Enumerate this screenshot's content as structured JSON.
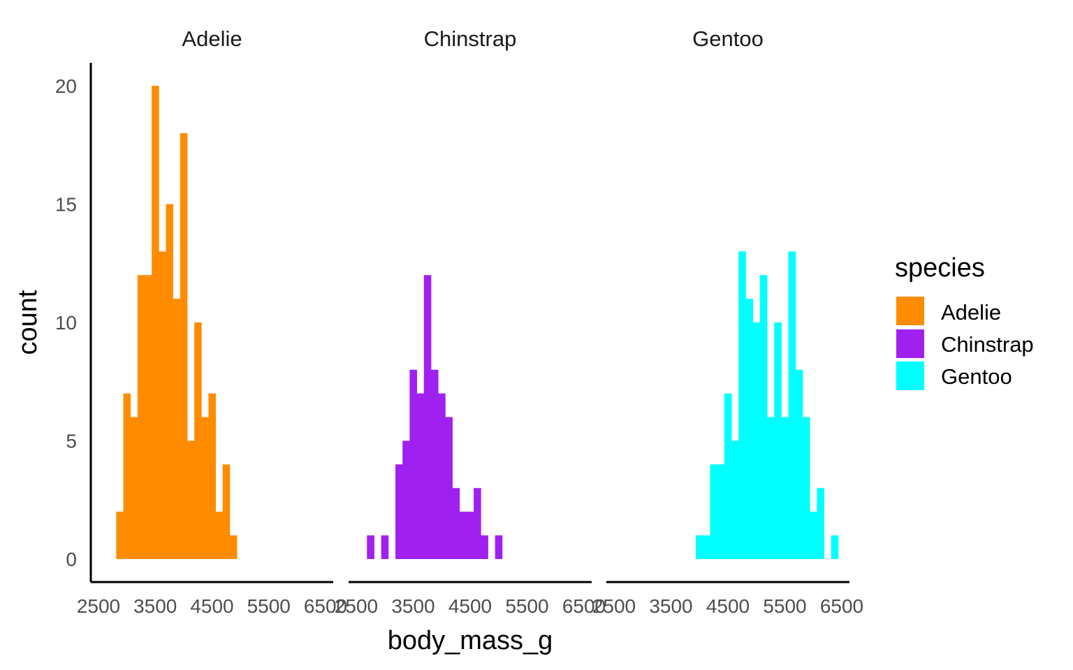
{
  "chart_data": {
    "type": "bar",
    "subtype": "faceted-histogram",
    "title": "",
    "xlabel": "body_mass_g",
    "ylabel": "count",
    "xlim": [
      2500,
      6500
    ],
    "ylim": [
      0,
      20
    ],
    "x_ticks": [
      2500,
      3500,
      4500,
      5500,
      6500
    ],
    "x_tick_labels": [
      "2500",
      "3500",
      "4500",
      "5500",
      "6500"
    ],
    "y_ticks": [
      0,
      5,
      10,
      15,
      20
    ],
    "y_tick_labels": [
      "0",
      "5",
      "10",
      "15",
      "20"
    ],
    "bin_width": 125,
    "legend": {
      "title": "species",
      "position": "right",
      "entries": [
        {
          "label": "Adelie",
          "color": "#FF8C00"
        },
        {
          "label": "Chinstrap",
          "color": "#A020F0"
        },
        {
          "label": "Gentoo",
          "color": "#00FFFF"
        }
      ]
    },
    "facets": [
      {
        "name": "Adelie",
        "color": "#FF8C00",
        "bins": [
          {
            "start": 2812.5,
            "count": 2
          },
          {
            "start": 2937.5,
            "count": 7
          },
          {
            "start": 3062.5,
            "count": 6
          },
          {
            "start": 3187.5,
            "count": 12
          },
          {
            "start": 3312.5,
            "count": 12
          },
          {
            "start": 3437.5,
            "count": 20
          },
          {
            "start": 3562.5,
            "count": 13
          },
          {
            "start": 3687.5,
            "count": 15
          },
          {
            "start": 3812.5,
            "count": 11
          },
          {
            "start": 3937.5,
            "count": 18
          },
          {
            "start": 4062.5,
            "count": 5
          },
          {
            "start": 4187.5,
            "count": 10
          },
          {
            "start": 4312.5,
            "count": 6
          },
          {
            "start": 4437.5,
            "count": 7
          },
          {
            "start": 4562.5,
            "count": 2
          },
          {
            "start": 4687.5,
            "count": 4
          },
          {
            "start": 4812.5,
            "count": 1
          }
        ]
      },
      {
        "name": "Chinstrap",
        "color": "#A020F0",
        "bins": [
          {
            "start": 2687.5,
            "count": 1
          },
          {
            "start": 2812.5,
            "count": 0
          },
          {
            "start": 2937.5,
            "count": 1
          },
          {
            "start": 3062.5,
            "count": 0
          },
          {
            "start": 3187.5,
            "count": 4
          },
          {
            "start": 3312.5,
            "count": 5
          },
          {
            "start": 3437.5,
            "count": 8
          },
          {
            "start": 3562.5,
            "count": 7
          },
          {
            "start": 3687.5,
            "count": 12
          },
          {
            "start": 3812.5,
            "count": 8
          },
          {
            "start": 3937.5,
            "count": 7
          },
          {
            "start": 4062.5,
            "count": 6
          },
          {
            "start": 4187.5,
            "count": 3
          },
          {
            "start": 4312.5,
            "count": 2
          },
          {
            "start": 4437.5,
            "count": 2
          },
          {
            "start": 4562.5,
            "count": 3
          },
          {
            "start": 4687.5,
            "count": 1
          },
          {
            "start": 4812.5,
            "count": 0
          },
          {
            "start": 4937.5,
            "count": 1
          }
        ]
      },
      {
        "name": "Gentoo",
        "color": "#00FFFF",
        "bins": [
          {
            "start": 3937.5,
            "count": 1
          },
          {
            "start": 4062.5,
            "count": 1
          },
          {
            "start": 4187.5,
            "count": 4
          },
          {
            "start": 4312.5,
            "count": 4
          },
          {
            "start": 4437.5,
            "count": 7
          },
          {
            "start": 4562.5,
            "count": 5
          },
          {
            "start": 4687.5,
            "count": 13
          },
          {
            "start": 4812.5,
            "count": 11
          },
          {
            "start": 4937.5,
            "count": 10
          },
          {
            "start": 5062.5,
            "count": 12
          },
          {
            "start": 5187.5,
            "count": 6
          },
          {
            "start": 5312.5,
            "count": 10
          },
          {
            "start": 5437.5,
            "count": 6
          },
          {
            "start": 5562.5,
            "count": 13
          },
          {
            "start": 5687.5,
            "count": 8
          },
          {
            "start": 5812.5,
            "count": 6
          },
          {
            "start": 5937.5,
            "count": 2
          },
          {
            "start": 6062.5,
            "count": 3
          },
          {
            "start": 6187.5,
            "count": 0
          },
          {
            "start": 6312.5,
            "count": 1
          }
        ]
      }
    ]
  }
}
